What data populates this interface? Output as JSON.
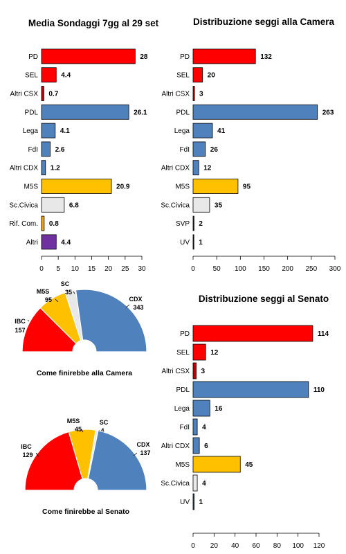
{
  "colors": {
    "red": "#ff0000",
    "blue": "#4f81bd",
    "yellow": "#ffc000",
    "light_gray": "#e8e8e8",
    "orange": "#ffa500",
    "purple": "#7030a0",
    "dark_red": "#c00000",
    "dark_blue": "#1f497d",
    "dark": "#222222"
  },
  "chart_data": [
    {
      "id": "polls",
      "type": "bar",
      "orientation": "horizontal",
      "title": "Media Sondaggi 7gg al 29 set",
      "categories": [
        "PD",
        "SEL",
        "Altri CSX",
        "PDL",
        "Lega",
        "FdI",
        "Altri CDX",
        "M5S",
        "Sc.Civica",
        "Rif. Com.",
        "Altri"
      ],
      "values": [
        28,
        4.4,
        0.7,
        26.1,
        4.1,
        2.6,
        1.2,
        20.9,
        6.8,
        0.8,
        4.4
      ],
      "labels": [
        "28",
        "4.4",
        "0.7",
        "26.1",
        "4.1",
        "2.6",
        "1.2",
        "20.9",
        "6.8",
        "0.8",
        "4.4"
      ],
      "colors": [
        "red",
        "red",
        "dark_red",
        "blue",
        "blue",
        "blue",
        "blue",
        "yellow",
        "light_gray",
        "orange",
        "purple"
      ],
      "xlim": [
        0,
        30
      ],
      "xticks": [
        0,
        5,
        10,
        15,
        20,
        25,
        30
      ]
    },
    {
      "id": "camera",
      "type": "bar",
      "orientation": "horizontal",
      "title": "Distribuzione seggi alla Camera",
      "categories": [
        "PD",
        "SEL",
        "Altri CSX",
        "PDL",
        "Lega",
        "FdI",
        "Altri CDX",
        "M5S",
        "Sc.Civica",
        "SVP",
        "UV"
      ],
      "values": [
        132,
        20,
        3,
        263,
        41,
        26,
        12,
        95,
        35,
        2,
        1
      ],
      "labels": [
        "132",
        "20",
        "3",
        "263",
        "41",
        "26",
        "12",
        "95",
        "35",
        "2",
        "1"
      ],
      "colors": [
        "red",
        "red",
        "dark_red",
        "blue",
        "blue",
        "blue",
        "blue",
        "yellow",
        "light_gray",
        "dark",
        "dark"
      ],
      "xlim": [
        0,
        300
      ],
      "xticks": [
        0,
        50,
        100,
        150,
        200,
        250,
        300
      ]
    },
    {
      "id": "senato",
      "type": "bar",
      "orientation": "horizontal",
      "title": "Distribuzione seggi al Senato",
      "categories": [
        "PD",
        "SEL",
        "Altri CSX",
        "PDL",
        "Lega",
        "FdI",
        "Altri CDX",
        "M5S",
        "Sc.Civica",
        "UV"
      ],
      "values": [
        114,
        12,
        3,
        110,
        16,
        4,
        6,
        45,
        4,
        1
      ],
      "labels": [
        "114",
        "12",
        "3",
        "110",
        "16",
        "4",
        "6",
        "45",
        "4",
        "1"
      ],
      "colors": [
        "red",
        "red",
        "dark_red",
        "blue",
        "blue",
        "blue",
        "blue",
        "yellow",
        "light_gray",
        "dark_blue"
      ],
      "xlim": [
        0,
        120
      ],
      "xticks": [
        0,
        20,
        40,
        60,
        80,
        100,
        120
      ]
    },
    {
      "id": "pie_camera",
      "type": "pie",
      "subtype": "half-donut",
      "title": "Come finirebbe alla Camera",
      "slices": [
        {
          "name": "IBC",
          "value": 157,
          "color": "red"
        },
        {
          "name": "M5S",
          "value": 95,
          "color": "yellow"
        },
        {
          "name": "SC",
          "value": 35,
          "color": "light_gray"
        },
        {
          "name": "CDX",
          "value": 343,
          "color": "blue"
        }
      ]
    },
    {
      "id": "pie_senato",
      "type": "pie",
      "subtype": "half-donut",
      "title": "Come finirebbe al Senato",
      "slices": [
        {
          "name": "IBC",
          "value": 129,
          "color": "red"
        },
        {
          "name": "M5S",
          "value": 45,
          "color": "yellow"
        },
        {
          "name": "SC",
          "value": 4,
          "color": "light_gray"
        },
        {
          "name": "CDX",
          "value": 137,
          "color": "blue"
        }
      ]
    }
  ]
}
